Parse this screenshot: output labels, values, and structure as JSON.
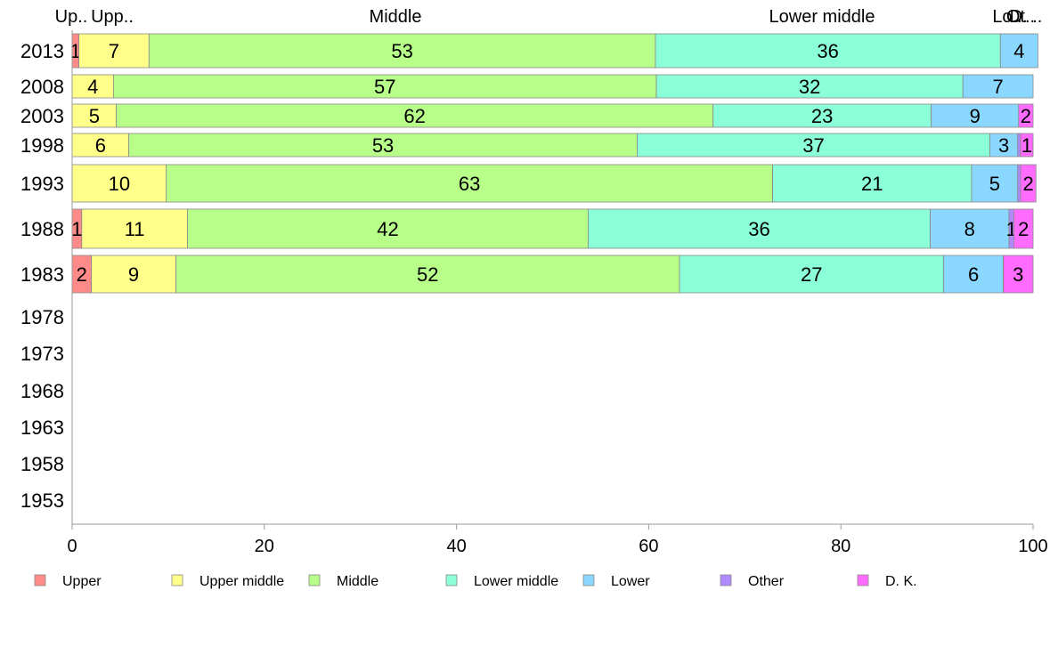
{
  "chart_data": {
    "type": "bar",
    "orientation": "horizontal",
    "stacked": true,
    "categories": [
      "2013",
      "2008",
      "2003",
      "1998",
      "1993",
      "1988",
      "1983",
      "1978",
      "1973",
      "1968",
      "1963",
      "1958",
      "1953"
    ],
    "series": [
      {
        "name": "Upper",
        "color": "#ff8a8a",
        "values": [
          0.7,
          0,
          0,
          0,
          0,
          1,
          2,
          null,
          null,
          null,
          null,
          null,
          null
        ],
        "labels": [
          "1",
          "",
          "",
          "",
          "",
          "1",
          "2",
          "",
          "",
          "",
          "",
          "",
          ""
        ]
      },
      {
        "name": "Upper middle",
        "color": "#ffff8a",
        "values": [
          7.3,
          4.3,
          4.6,
          5.9,
          9.8,
          11,
          8.8,
          null,
          null,
          null,
          null,
          null,
          null
        ],
        "labels": [
          "7",
          "4",
          "5",
          "6",
          "10",
          "11",
          "9",
          "",
          "",
          "",
          "",
          "",
          ""
        ]
      },
      {
        "name": "Middle",
        "color": "#b8ff8a",
        "values": [
          52.7,
          56.5,
          62.1,
          52.9,
          63.1,
          41.7,
          52.4,
          null,
          null,
          null,
          null,
          null,
          null
        ],
        "labels": [
          "53",
          "57",
          "62",
          "53",
          "63",
          "42",
          "52",
          "",
          "",
          "",
          "",
          "",
          ""
        ]
      },
      {
        "name": "Lower middle",
        "color": "#8affd8",
        "values": [
          35.9,
          31.9,
          22.7,
          36.7,
          20.7,
          35.6,
          27.5,
          null,
          null,
          null,
          null,
          null,
          null
        ],
        "labels": [
          "36",
          "32",
          "23",
          "37",
          "21",
          "36",
          "27",
          "",
          "",
          "",
          "",
          "",
          ""
        ]
      },
      {
        "name": "Lower",
        "color": "#8ad8ff",
        "values": [
          3.9,
          7.3,
          9.1,
          2.9,
          4.8,
          8.2,
          6.2,
          null,
          null,
          null,
          null,
          null,
          null
        ],
        "labels": [
          "4",
          "7",
          "9",
          "3",
          "5",
          "8",
          "6",
          "",
          "",
          "",
          "",
          "",
          ""
        ]
      },
      {
        "name": "Other",
        "color": "#b08aff",
        "values": [
          0,
          0,
          0,
          0.3,
          0.3,
          0.5,
          0,
          null,
          null,
          null,
          null,
          null,
          null
        ],
        "labels": [
          "",
          "",
          "",
          "",
          "",
          "1",
          "",
          "",
          "",
          "",
          "",
          "",
          ""
        ]
      },
      {
        "name": "D. K.",
        "color": "#ff6cff",
        "values": [
          0,
          0,
          1.5,
          1.3,
          1.6,
          2,
          3.1,
          null,
          null,
          null,
          null,
          null,
          null
        ],
        "labels": [
          "",
          "",
          "2",
          "1",
          "2",
          "2",
          "3",
          "",
          "",
          "",
          "",
          "",
          ""
        ]
      }
    ],
    "top_labels": [
      "Up..",
      "Upp..",
      "Middle",
      "Lower middle",
      "Lo..",
      "Ot..",
      "D. .."
    ],
    "xlim": [
      0,
      100
    ],
    "xticks": [
      "0",
      "20",
      "40",
      "60",
      "80",
      "100"
    ],
    "grid": false,
    "legend_position": "bottom",
    "title": "",
    "xlabel": "",
    "ylabel": ""
  }
}
